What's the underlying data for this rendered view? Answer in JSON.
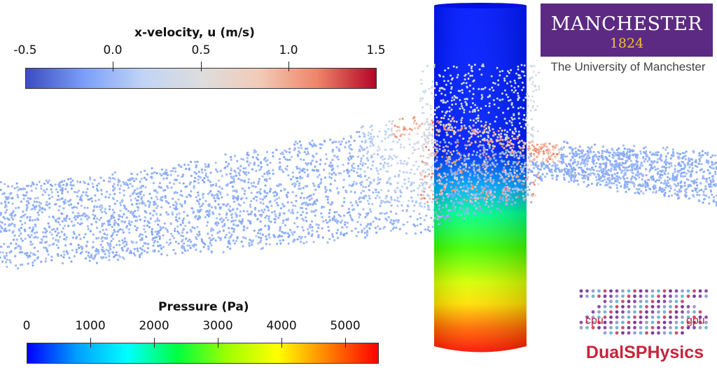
{
  "velocity_bar": {
    "title": "x-velocity, u (m/s)",
    "ticks": [
      "-0.5",
      "0.0",
      "0.5",
      "1.0",
      "1.5"
    ],
    "colors": [
      "#3b4cc0",
      "#7b9ff9",
      "#c0d4f5",
      "#dddddd",
      "#f2cbb7",
      "#ee8468",
      "#b40426"
    ]
  },
  "pressure_bar": {
    "title": "Pressure (Pa)",
    "ticks": [
      "0",
      "1000",
      "2000",
      "3000",
      "4000",
      "5000"
    ],
    "colors": [
      "#0000ff",
      "#00a0ff",
      "#00ffff",
      "#00ff40",
      "#a0ff00",
      "#ffff00",
      "#ff8000",
      "#ff0000"
    ]
  },
  "logo": {
    "name": "MANCHESTER",
    "year": "1824",
    "subtitle": "The University of Manchester"
  },
  "software_logo": {
    "left_label": "cpu",
    "right_label": "gpu",
    "name": "DualSPHysics"
  }
}
